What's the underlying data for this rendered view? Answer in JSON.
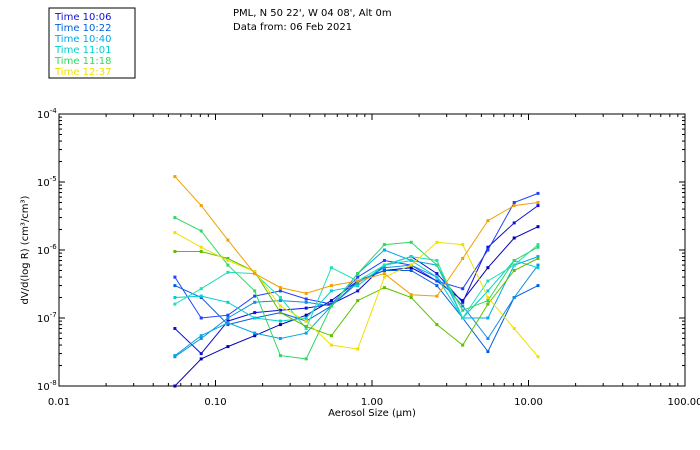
{
  "header": {
    "line1": "PML, N 50 22', W 04 08', Alt 0m",
    "line2": "Data from: 06 Feb 2021"
  },
  "chart_data": {
    "type": "line",
    "title": "PML, N 50 22', W 04 08', Alt 0m",
    "subtitle": "Data from: 06 Feb 2021",
    "xlabel": "Aerosol Size (µm)",
    "ylabel": "dV/d(log R) (cm³/cm³)",
    "xscale": "log",
    "yscale": "log",
    "xlim": [
      0.01,
      100
    ],
    "ylim": [
      1e-08,
      0.0001
    ],
    "x_ticks": [
      "0.01",
      "0.10",
      "1.00",
      "10.00",
      "100.00"
    ],
    "y_ticks": [
      {
        "base": "10",
        "exp": "-8"
      },
      {
        "base": "10",
        "exp": "-7"
      },
      {
        "base": "10",
        "exp": "-6"
      },
      {
        "base": "10",
        "exp": "-5"
      },
      {
        "base": "10",
        "exp": "-4"
      }
    ],
    "legend_position": "top-left",
    "x": [
      0.055,
      0.081,
      0.12,
      0.178,
      0.26,
      0.38,
      0.55,
      0.81,
      1.2,
      1.78,
      2.6,
      3.8,
      5.5,
      8.1,
      11.5
    ],
    "series": [
      {
        "name": "Time 10:06",
        "color": "#0000b4",
        "values": [
          1e-08,
          2.5e-08,
          3.8e-08,
          5.5e-08,
          8e-08,
          1.1e-07,
          1.8e-07,
          3.5e-07,
          5e-07,
          5.5e-07,
          3.5e-07,
          1.8e-07,
          5.5e-07,
          1.5e-06,
          2.2e-06
        ]
      },
      {
        "name": "Time 10:06",
        "color": "#1010d8",
        "values": [
          7e-08,
          3e-08,
          9e-08,
          1.2e-07,
          1.3e-07,
          1.4e-07,
          1.6e-07,
          2.5e-07,
          6e-07,
          8e-07,
          4.5e-07,
          1.7e-07,
          1.1e-06,
          2.5e-06,
          4.5e-06
        ]
      },
      {
        "name": "Time 10:22",
        "color": "#2040ff",
        "values": [
          4e-07,
          1e-07,
          1.1e-07,
          2.1e-07,
          2.5e-07,
          1.9e-07,
          1.6e-07,
          4e-07,
          7e-07,
          6e-07,
          3.5e-07,
          2.7e-07,
          1e-06,
          5e-06,
          6.8e-06
        ]
      },
      {
        "name": "Time 10:22",
        "color": "#0060e0",
        "values": [
          3e-07,
          2e-07,
          8e-08,
          1e-07,
          1.2e-07,
          9e-08,
          1.5e-07,
          3.5e-07,
          5e-07,
          5e-07,
          3e-07,
          1e-07,
          3.2e-08,
          2e-07,
          3e-07
        ]
      },
      {
        "name": "Time 10:40",
        "color": "#1090e0",
        "values": [
          2.7e-08,
          5e-08,
          1e-07,
          1.7e-07,
          1.8e-07,
          1.7e-07,
          1.5e-07,
          3.3e-07,
          5.5e-07,
          6e-07,
          4e-07,
          1.5e-07,
          5e-08,
          2e-07,
          6e-07
        ]
      },
      {
        "name": "Time 10:40",
        "color": "#00a8e8",
        "values": [
          2.8e-08,
          5.5e-08,
          8.5e-08,
          6e-08,
          5e-08,
          6e-08,
          1.5e-07,
          4.5e-07,
          1e-06,
          7e-07,
          6e-07,
          1e-07,
          1e-07,
          6e-07,
          8e-07
        ]
      },
      {
        "name": "Time 11:01",
        "color": "#00d0d0",
        "values": [
          2e-07,
          2.1e-07,
          1.7e-07,
          1e-07,
          9e-08,
          1e-07,
          2.5e-07,
          3e-07,
          6e-07,
          7e-07,
          4e-07,
          1e-07,
          2.5e-07,
          7e-07,
          5.5e-07
        ]
      },
      {
        "name": "Time 11:01",
        "color": "#20e0b8",
        "values": [
          1.6e-07,
          2.7e-07,
          4.7e-07,
          4.5e-07,
          2e-07,
          7e-08,
          5.5e-07,
          3.5e-07,
          6e-07,
          8e-07,
          7e-07,
          1e-07,
          3.5e-07,
          6e-07,
          1.2e-06
        ]
      },
      {
        "name": "Time 11:18",
        "color": "#30d860",
        "values": [
          3e-06,
          1.9e-06,
          6e-07,
          2.5e-07,
          2.8e-08,
          2.5e-08,
          1.5e-07,
          4.5e-07,
          1.2e-06,
          1.3e-06,
          6e-07,
          1.3e-07,
          1.8e-07,
          7e-07,
          1.1e-06
        ]
      },
      {
        "name": "Time 11:18",
        "color": "#60c000",
        "values": [
          9.5e-07,
          9.5e-07,
          7.5e-07,
          4.8e-07,
          1.2e-07,
          7.5e-08,
          5.5e-08,
          1.8e-07,
          2.8e-07,
          2e-07,
          8e-08,
          4e-08,
          1.6e-07,
          5e-07,
          7.5e-07
        ]
      },
      {
        "name": "Time 12:37",
        "color": "#f0e000",
        "values": [
          1.8e-06,
          1.1e-06,
          7e-07,
          4.8e-07,
          1.5e-07,
          9e-08,
          4e-08,
          3.5e-08,
          4e-07,
          6e-07,
          1.3e-06,
          1.2e-06,
          2e-07,
          7e-08,
          2.7e-08
        ]
      },
      {
        "name": "Time 12:37",
        "color": "#f0a000",
        "values": [
          1.2e-05,
          4.5e-06,
          1.4e-06,
          4.5e-07,
          2.8e-07,
          2.3e-07,
          3e-07,
          3.5e-07,
          4.5e-07,
          2.2e-07,
          2.1e-07,
          7.5e-07,
          2.7e-06,
          4.5e-06,
          5e-06
        ]
      }
    ],
    "legend": [
      {
        "label": "Time 10:06",
        "color": "#1010d8"
      },
      {
        "label": "Time 10:22",
        "color": "#0060e0"
      },
      {
        "label": "Time 10:40",
        "color": "#00a8e8"
      },
      {
        "label": "Time 11:01",
        "color": "#00d0d0"
      },
      {
        "label": "Time 11:18",
        "color": "#30d860"
      },
      {
        "label": "Time 12:37",
        "color": "#f0e000"
      }
    ]
  }
}
